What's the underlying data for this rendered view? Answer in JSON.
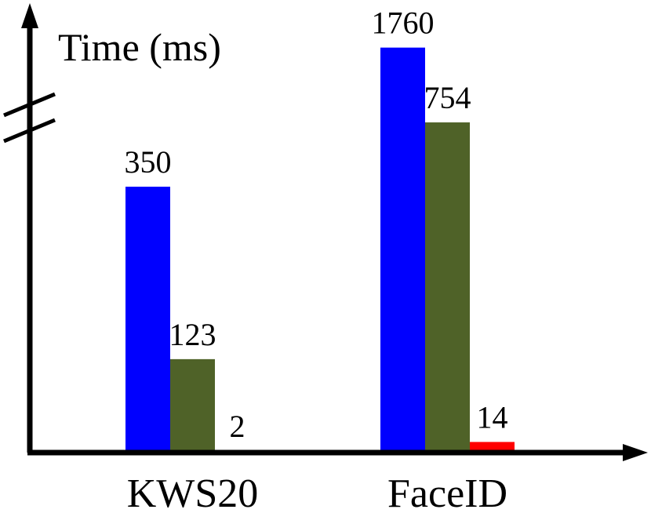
{
  "chart_data": {
    "type": "bar",
    "ylabel": "Time (ms)",
    "categories": [
      "KWS20",
      "FaceID"
    ],
    "axis_break": true,
    "grid": false,
    "legend": "none",
    "series": [
      {
        "color": "#0000ff",
        "values": [
          350,
          1760
        ]
      },
      {
        "color": "#4f6228",
        "values": [
          123,
          754
        ]
      },
      {
        "color": "#ff0000",
        "values": [
          2,
          14
        ]
      }
    ],
    "data_labels": [
      [
        "350",
        "1760"
      ],
      [
        "123",
        "754"
      ],
      [
        "2",
        "14"
      ]
    ]
  }
}
